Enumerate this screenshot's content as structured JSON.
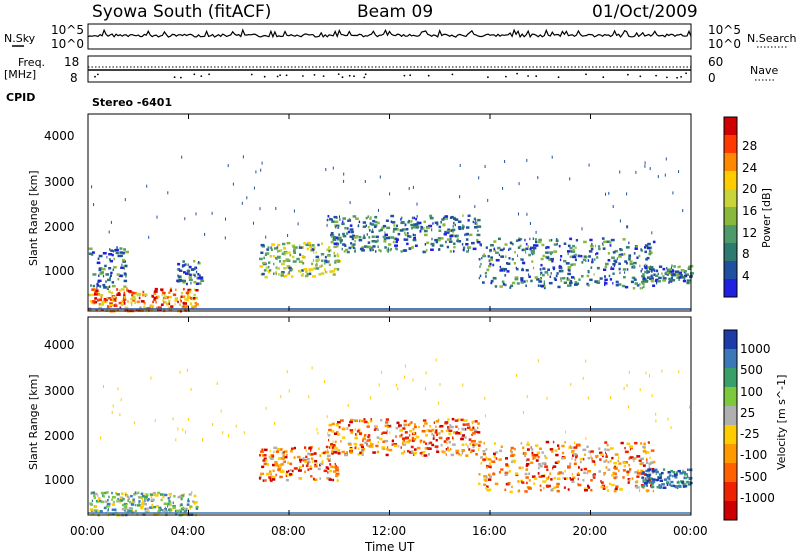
{
  "header": {
    "station": "Syowa South (fitACF)",
    "beam": "Beam 09",
    "date": "01/Oct/2009"
  },
  "strip": {
    "nsky_label": "N.Sky",
    "nsearch_label": "N.Search",
    "freq_label": "Freq.",
    "freq_unit": "[MHz]",
    "nave_label": "Nave",
    "cpid_label": "CPID",
    "cpid_value": "Stereo -6401",
    "noise_ticks": [
      "10^5",
      "10^0"
    ],
    "freq_ticks": [
      "18",
      "8"
    ],
    "nave_ticks": [
      "60",
      "0"
    ]
  },
  "chart_data": {
    "type": "heatmap",
    "x": {
      "label": "Time UT",
      "ticks": [
        "00:00",
        "04:00",
        "08:00",
        "12:00",
        "16:00",
        "20:00",
        "00:00"
      ],
      "range_hours": [
        0,
        24
      ]
    },
    "panels": [
      {
        "name": "power",
        "ylabel": "Slant Range [km]",
        "yticks": [
          1000,
          2000,
          3000,
          4000
        ],
        "ylim": [
          180,
          4500
        ],
        "colorbar": {
          "label": "Power [dB]",
          "ticks": [
            "28",
            "24",
            "20",
            "16",
            "12",
            "8",
            "4"
          ],
          "colors": [
            "#d00000",
            "#ff3a00",
            "#ff8800",
            "#ffcc00",
            "#c8d43a",
            "#8ab83c",
            "#4e9a6a",
            "#2d7a70",
            "#1f4fa0",
            "#2020e0"
          ]
        },
        "echo_regions": [
          {
            "t": [
              0.0,
              4.3
            ],
            "r": [
              200,
              700
            ],
            "level": "high"
          },
          {
            "t": [
              0.0,
              1.5
            ],
            "r": [
              700,
              1600
            ],
            "level": "low"
          },
          {
            "t": [
              3.5,
              4.5
            ],
            "r": [
              800,
              1300
            ],
            "level": "low"
          },
          {
            "t": [
              6.8,
              10.0
            ],
            "r": [
              950,
              1700
            ],
            "level": "mid"
          },
          {
            "t": [
              9.5,
              15.5
            ],
            "r": [
              1500,
              2300
            ],
            "level": "low"
          },
          {
            "t": [
              15.5,
              22.5
            ],
            "r": [
              700,
              1800
            ],
            "level": "low"
          },
          {
            "t": [
              22.0,
              24.0
            ],
            "r": [
              800,
              1200
            ],
            "level": "low"
          }
        ]
      },
      {
        "name": "velocity",
        "ylabel": "Slant Range [km]",
        "yticks": [
          1000,
          2000,
          3000,
          4000
        ],
        "ylim": [
          180,
          4500
        ],
        "colorbar": {
          "label": "Velocity [m s^-1]",
          "ticks": [
            "1000",
            "500",
            "100",
            "25",
            "-25",
            "-100",
            "-500",
            "-1000"
          ],
          "colors": [
            "#1c3ca8",
            "#3a78b8",
            "#3aa06a",
            "#7ec83c",
            "#b0b0b0",
            "#ffcc00",
            "#ff9900",
            "#ff6000",
            "#ee2200",
            "#cc0000"
          ]
        },
        "echo_regions": [
          {
            "t": [
              0.0,
              4.3
            ],
            "r": [
              200,
              700
            ],
            "level": "mixed"
          },
          {
            "t": [
              6.8,
              10.0
            ],
            "r": [
              950,
              1700
            ],
            "level": "neg"
          },
          {
            "t": [
              9.5,
              15.5
            ],
            "r": [
              1500,
              2300
            ],
            "level": "neg"
          },
          {
            "t": [
              15.5,
              22.5
            ],
            "r": [
              700,
              1800
            ],
            "level": "neg"
          },
          {
            "t": [
              22.0,
              24.0
            ],
            "r": [
              800,
              1200
            ],
            "level": "pos"
          }
        ]
      }
    ]
  }
}
